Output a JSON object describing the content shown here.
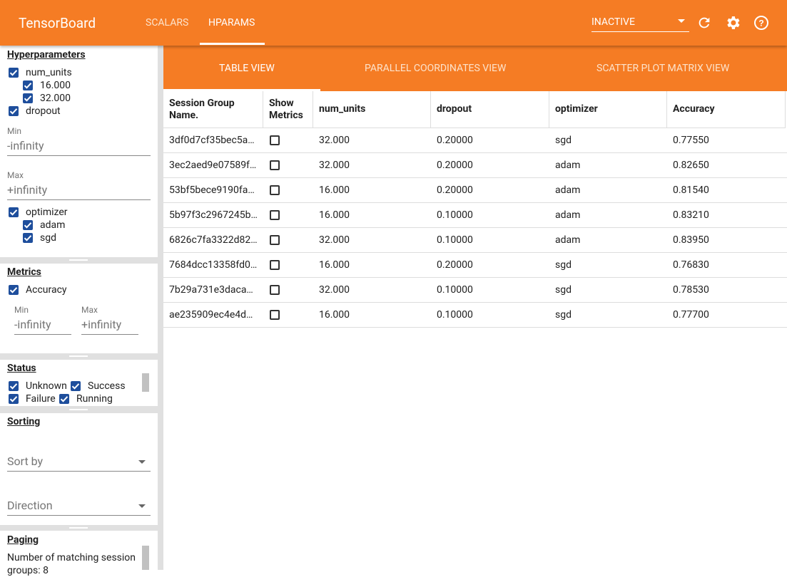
{
  "header": {
    "title": "TensorBoard",
    "tabs": [
      "SCALARS",
      "HPARAMS"
    ],
    "status": "INACTIVE"
  },
  "sidebar": {
    "hyperparameters": {
      "title": "Hyperparameters",
      "num_units": {
        "name": "num_units",
        "values": [
          "16.000",
          "32.000"
        ]
      },
      "dropout": {
        "name": "dropout",
        "min_label": "Min",
        "min": "-infinity",
        "max_label": "Max",
        "max": "+infinity"
      },
      "optimizer": {
        "name": "optimizer",
        "values": [
          "adam",
          "sgd"
        ]
      }
    },
    "metrics": {
      "title": "Metrics",
      "name": "Accuracy",
      "min_label": "Min",
      "min": "-infinity",
      "max_label": "Max",
      "max": "+infinity"
    },
    "status": {
      "title": "Status",
      "options": [
        "Unknown",
        "Success",
        "Failure",
        "Running"
      ]
    },
    "sorting": {
      "title": "Sorting",
      "sort_by": "Sort by",
      "direction": "Direction"
    },
    "paging": {
      "title": "Paging",
      "text": "Number of matching session groups: 8"
    }
  },
  "views": [
    "TABLE VIEW",
    "PARALLEL COORDINATES VIEW",
    "SCATTER PLOT MATRIX VIEW"
  ],
  "table": {
    "columns": [
      "Session Group Name.",
      "Show Metrics",
      "num_units",
      "dropout",
      "optimizer",
      "Accuracy"
    ],
    "rows": [
      {
        "name": "3df0d7cf35bec5a…",
        "num_units": "32.000",
        "dropout": "0.20000",
        "optimizer": "sgd",
        "accuracy": "0.77550"
      },
      {
        "name": "3ec2aed9e07589f…",
        "num_units": "32.000",
        "dropout": "0.20000",
        "optimizer": "adam",
        "accuracy": "0.82650"
      },
      {
        "name": "53bf5bece9190fa…",
        "num_units": "16.000",
        "dropout": "0.20000",
        "optimizer": "adam",
        "accuracy": "0.81540"
      },
      {
        "name": "5b97f3c2967245b…",
        "num_units": "16.000",
        "dropout": "0.10000",
        "optimizer": "adam",
        "accuracy": "0.83210"
      },
      {
        "name": "6826c7fa3322d82…",
        "num_units": "32.000",
        "dropout": "0.10000",
        "optimizer": "adam",
        "accuracy": "0.83950"
      },
      {
        "name": "7684dcc13358fd0…",
        "num_units": "16.000",
        "dropout": "0.20000",
        "optimizer": "sgd",
        "accuracy": "0.76830"
      },
      {
        "name": "7b29a731e3daca…",
        "num_units": "32.000",
        "dropout": "0.10000",
        "optimizer": "sgd",
        "accuracy": "0.78530"
      },
      {
        "name": "ae235909ec4e4d…",
        "num_units": "16.000",
        "dropout": "0.10000",
        "optimizer": "sgd",
        "accuracy": "0.77700"
      }
    ]
  }
}
